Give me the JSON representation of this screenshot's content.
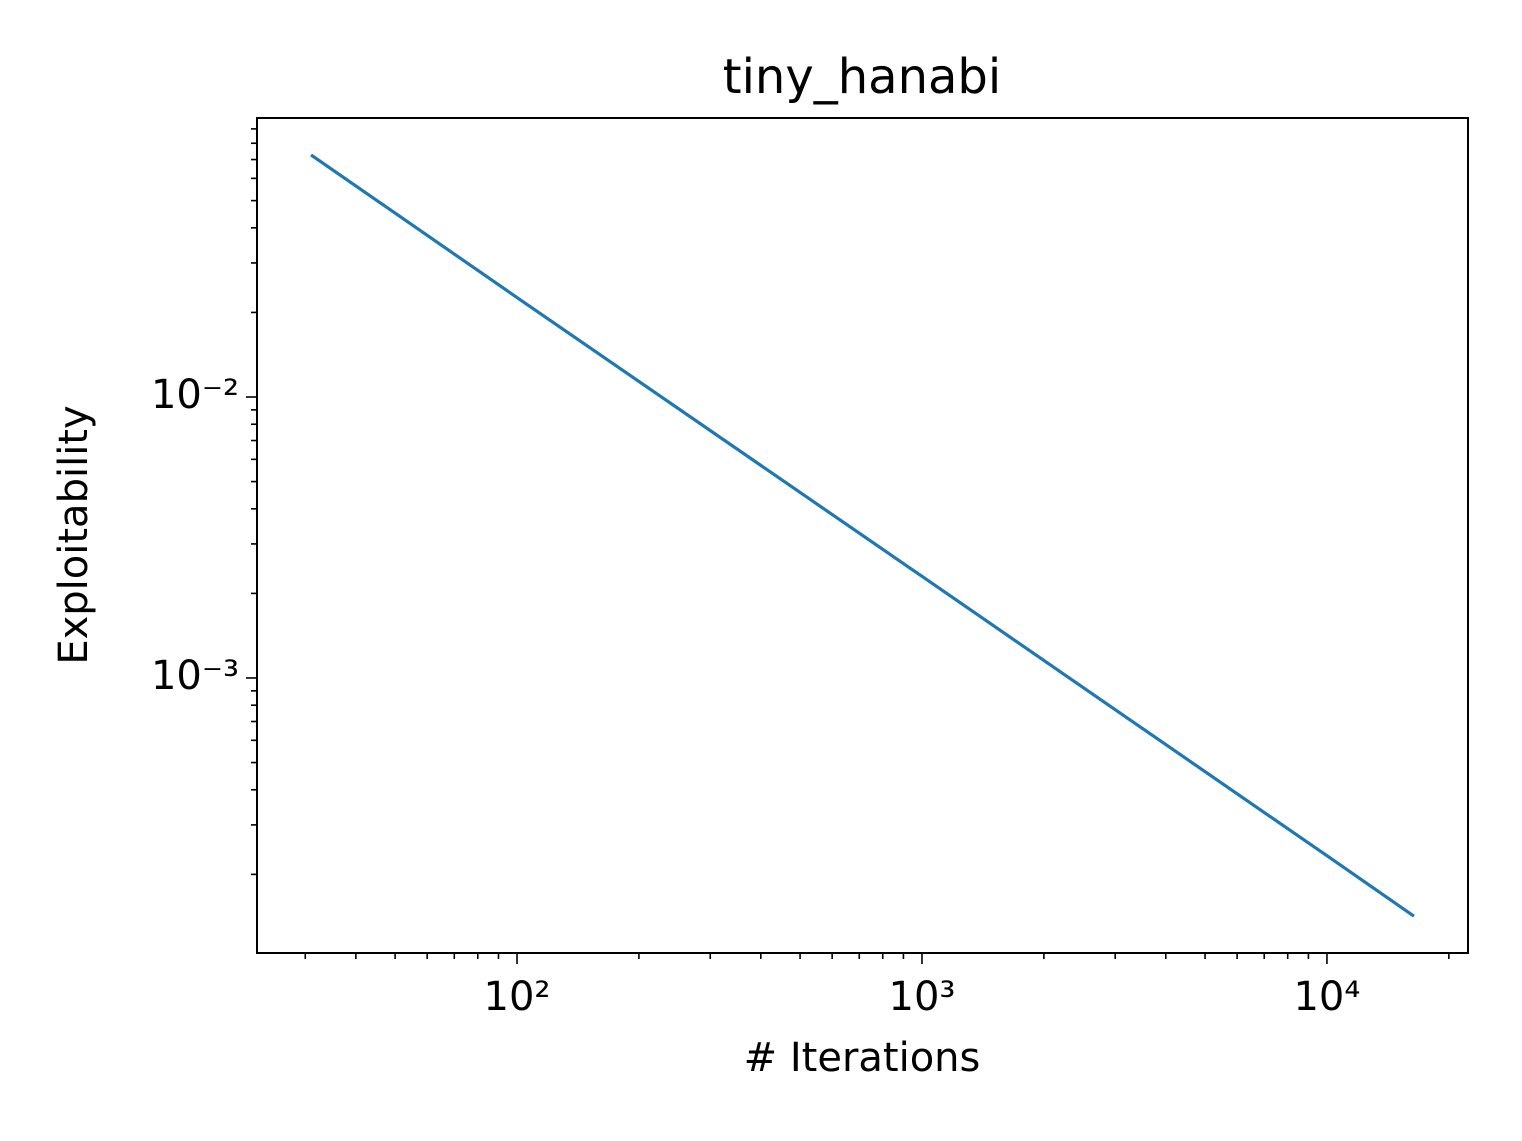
{
  "chart_data": {
    "type": "line",
    "title": "tiny_hanabi",
    "x_label": "# Iterations",
    "y_label": "Exploitability",
    "x": [
      31,
      100,
      1000,
      10000,
      16400
    ],
    "series": [
      {
        "name": "tiny_hanabi",
        "color": "#1f77b4",
        "values": [
          0.0727,
          0.0226,
          0.0023,
          0.000233,
          0.000142
        ]
      }
    ],
    "xscale": "log",
    "yscale": "log",
    "xlim": [
      22.8,
      22300
    ],
    "ylim": [
      0.000105,
      0.0984
    ],
    "xticks": [
      {
        "value": 100,
        "label": "10²"
      },
      {
        "value": 1000,
        "label": "10³"
      },
      {
        "value": 10000,
        "label": "10⁴"
      }
    ],
    "yticks": [
      {
        "value": 0.001,
        "label": "10⁻³"
      },
      {
        "value": 0.01,
        "label": "10⁻²"
      }
    ],
    "xminorticks": [
      30,
      40,
      50,
      60,
      70,
      80,
      90,
      200,
      300,
      400,
      500,
      600,
      700,
      800,
      900,
      2000,
      3000,
      4000,
      5000,
      6000,
      7000,
      8000,
      9000,
      20000
    ],
    "yminorticks": [
      0.0002,
      0.0003,
      0.0004,
      0.0005,
      0.0006,
      0.0007,
      0.0008,
      0.0009,
      0.002,
      0.003,
      0.004,
      0.005,
      0.006,
      0.007,
      0.008,
      0.009,
      0.02,
      0.03,
      0.04,
      0.05,
      0.06,
      0.07,
      0.08,
      0.09
    ],
    "grid": false
  }
}
